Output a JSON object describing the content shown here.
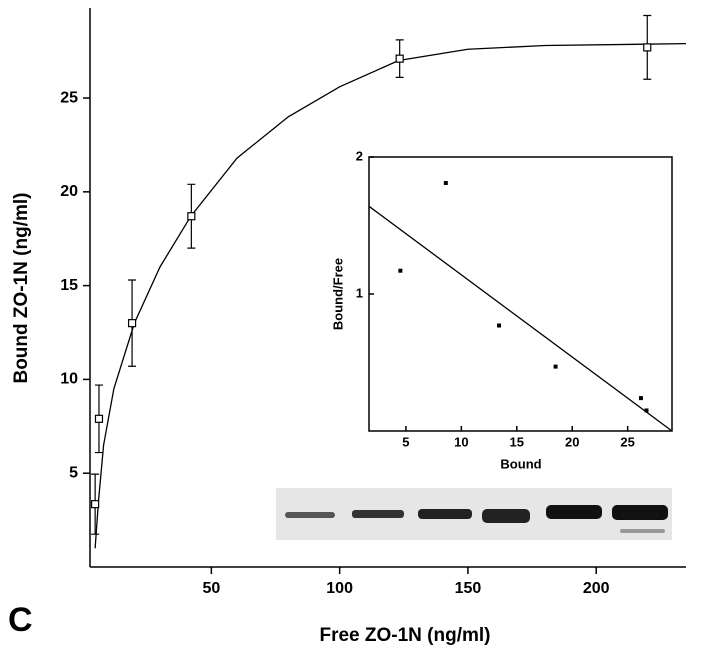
{
  "panel_label": "C",
  "chart_data": [
    {
      "type": "scatter",
      "x_label": "Free ZO-1N (ng/ml)",
      "y_label": "Bound ZO-1N (ng/ml)",
      "xlim": [
        2.7,
        235
      ],
      "ylim": [
        0,
        29.8
      ],
      "xticks": [
        50,
        100,
        150,
        200
      ],
      "yticks": [
        5,
        10,
        15,
        20,
        25
      ],
      "x": [
        4.7,
        6.2,
        19.1,
        42.2,
        123.4,
        219.9
      ],
      "series": [
        {
          "values": [
            3.35,
            7.9,
            13.0,
            18.7,
            27.1,
            27.7
          ],
          "errors": [
            1.6,
            1.8,
            2.3,
            1.7,
            1.0,
            1.7
          ],
          "color": "#000000"
        }
      ],
      "fit": {
        "x": [
          4.7,
          6,
          8,
          12,
          20,
          30,
          42,
          60,
          80,
          100,
          123,
          150,
          180,
          235
        ],
        "y": [
          1.0,
          3.5,
          6.5,
          9.5,
          13,
          16,
          18.7,
          21.8,
          24,
          25.6,
          27,
          27.6,
          27.8,
          27.9
        ]
      }
    },
    {
      "type": "scatter",
      "x_label": "Bound",
      "y_label": "Bound/Free",
      "xlim": [
        1.67,
        29
      ],
      "ylim": [
        0,
        2
      ],
      "xticks": [
        5,
        10,
        15,
        20,
        25
      ],
      "yticks": [
        1,
        2
      ],
      "x": [
        4.5,
        8.6,
        13.4,
        18.5,
        26.2,
        26.7
      ],
      "series": [
        {
          "values": [
            1.17,
            1.81,
            0.77,
            0.47,
            0.24,
            0.15
          ],
          "color": "#000000"
        }
      ],
      "fit": {
        "x": [
          1.67,
          29
        ],
        "y": [
          1.64,
          0
        ]
      }
    }
  ]
}
